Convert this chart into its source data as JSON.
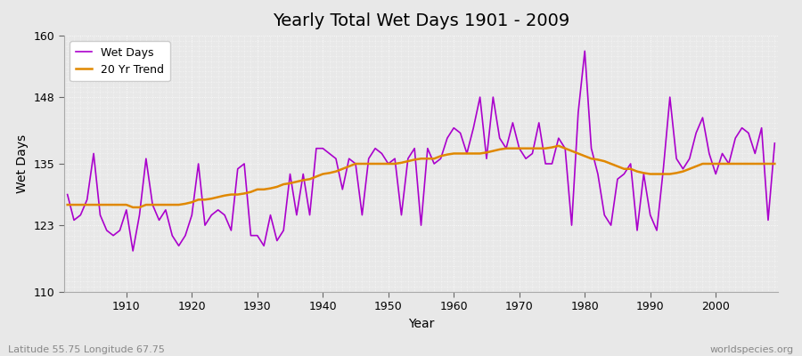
{
  "title": "Yearly Total Wet Days 1901 - 2009",
  "xlabel": "Year",
  "ylabel": "Wet Days",
  "subtitle_left": "Latitude 55.75 Longitude 67.75",
  "subtitle_right": "worldspecies.org",
  "ylim": [
    110,
    160
  ],
  "yticks": [
    110,
    123,
    135,
    148,
    160
  ],
  "start_year": 1901,
  "end_year": 2009,
  "wet_days": [
    129,
    124,
    125,
    128,
    137,
    125,
    122,
    121,
    122,
    126,
    118,
    125,
    136,
    127,
    124,
    126,
    121,
    119,
    121,
    125,
    135,
    123,
    125,
    126,
    125,
    122,
    134,
    135,
    121,
    121,
    119,
    125,
    120,
    122,
    133,
    125,
    133,
    125,
    138,
    138,
    137,
    136,
    130,
    136,
    135,
    125,
    136,
    138,
    137,
    135,
    136,
    125,
    136,
    138,
    123,
    138,
    135,
    136,
    140,
    142,
    141,
    137,
    142,
    148,
    136,
    148,
    140,
    138,
    143,
    138,
    136,
    137,
    143,
    135,
    135,
    140,
    138,
    123,
    145,
    157,
    138,
    133,
    125,
    123,
    132,
    133,
    135,
    122,
    133,
    125,
    122,
    134,
    148,
    136,
    134,
    136,
    141,
    144,
    137,
    133,
    137,
    135,
    140,
    142,
    141,
    137,
    142,
    124,
    139
  ],
  "trend": [
    127.0,
    127.0,
    127.0,
    127.0,
    127.0,
    127.0,
    127.0,
    127.0,
    127.0,
    127.0,
    126.5,
    126.5,
    127.0,
    127.0,
    127.0,
    127.0,
    127.0,
    127.0,
    127.2,
    127.5,
    128.0,
    128.0,
    128.2,
    128.5,
    128.8,
    129.0,
    129.0,
    129.2,
    129.5,
    130.0,
    130.0,
    130.2,
    130.5,
    131.0,
    131.2,
    131.5,
    131.8,
    132.0,
    132.5,
    133.0,
    133.2,
    133.5,
    134.0,
    134.5,
    135.0,
    135.0,
    135.0,
    135.0,
    135.0,
    135.0,
    135.0,
    135.2,
    135.5,
    135.8,
    136.0,
    136.0,
    136.0,
    136.5,
    136.8,
    137.0,
    137.0,
    137.0,
    137.0,
    137.0,
    137.2,
    137.5,
    137.8,
    138.0,
    138.0,
    138.0,
    138.0,
    138.0,
    138.0,
    138.0,
    138.2,
    138.5,
    138.0,
    137.5,
    137.0,
    136.5,
    136.0,
    135.8,
    135.5,
    135.0,
    134.5,
    134.0,
    134.0,
    133.5,
    133.2,
    133.0,
    133.0,
    133.0,
    133.0,
    133.2,
    133.5,
    134.0,
    134.5,
    135.0,
    135.0,
    135.0,
    135.0,
    135.0,
    135.0,
    135.0,
    135.0,
    135.0,
    135.0,
    135.0,
    135.0
  ],
  "wet_days_color": "#AA00CC",
  "trend_color": "#E08800",
  "bg_color": "#E8E8E8",
  "plot_bg_color": "#E8E8E8",
  "grid_color": "#FFFFFF",
  "legend_wet": "Wet Days",
  "legend_trend": "20 Yr Trend",
  "title_fontsize": 14,
  "axis_label_fontsize": 10,
  "tick_fontsize": 9,
  "legend_fontsize": 9
}
